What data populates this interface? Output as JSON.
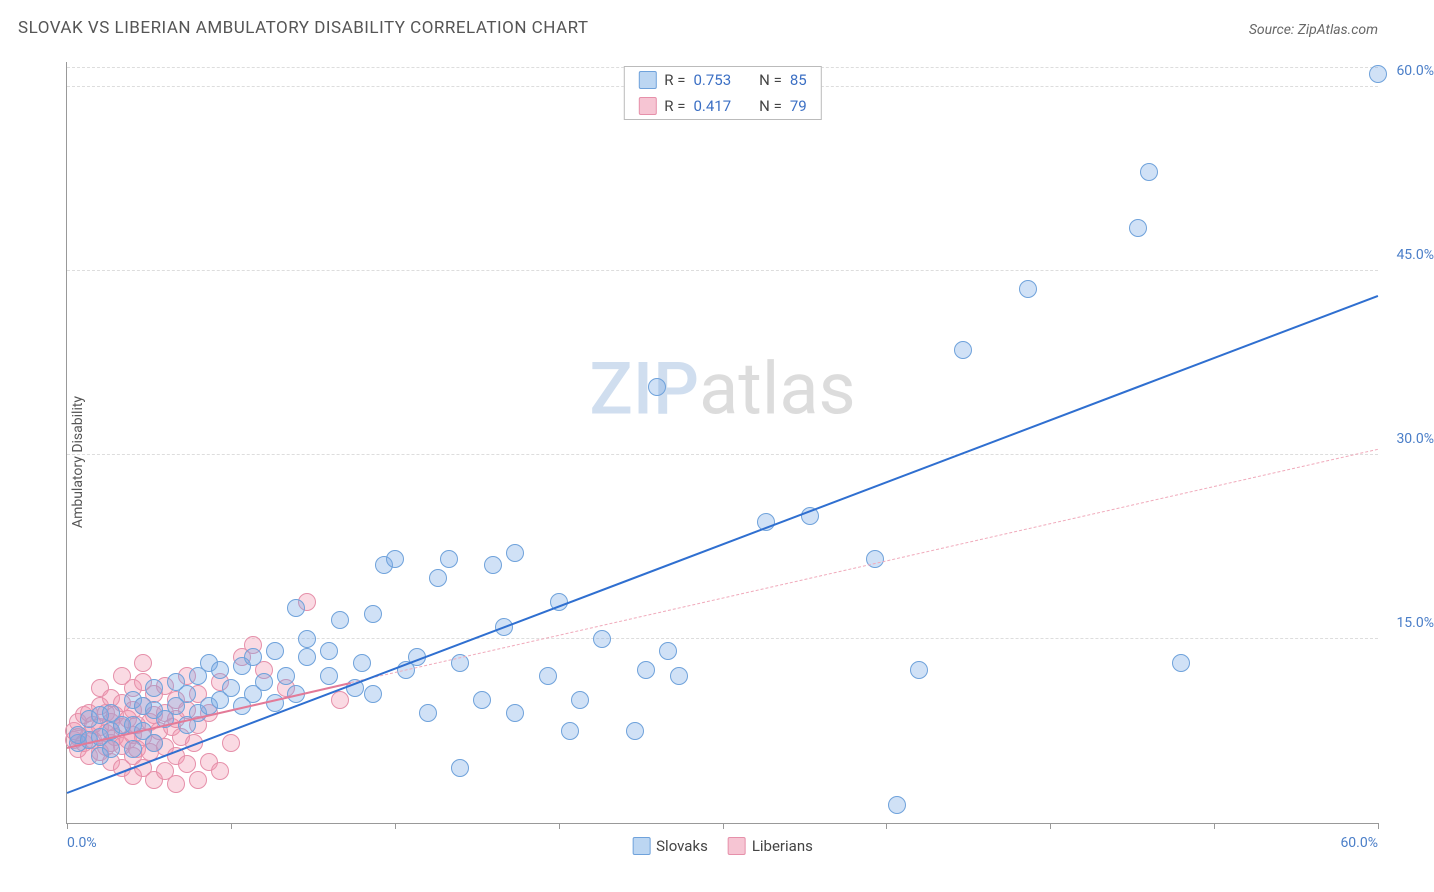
{
  "title": "SLOVAK VS LIBERIAN AMBULATORY DISABILITY CORRELATION CHART",
  "source_label": "Source: ZipAtlas.com",
  "ylabel": "Ambulatory Disability",
  "watermark": {
    "part1": "ZIP",
    "part2": "atlas"
  },
  "chart": {
    "type": "scatter",
    "background_color": "#ffffff",
    "grid_color": "#dddddd",
    "axis_color": "#999999",
    "xlim": [
      0,
      60
    ],
    "ylim": [
      0,
      62
    ],
    "xticks": [
      0,
      7.5,
      15,
      22.5,
      30,
      37.5,
      45,
      52.5,
      60
    ],
    "xtick_labels": {
      "0": "0.0%",
      "60": "60.0%"
    },
    "yticks": [
      15,
      30,
      45,
      60
    ],
    "ytick_labels": {
      "15": "15.0%",
      "30": "30.0%",
      "45": "45.0%",
      "60": "60.0%"
    },
    "point_radius": 9,
    "point_border_width": 1,
    "series": [
      {
        "name": "Slovaks",
        "fill_color": "rgba(120,170,230,0.35)",
        "border_color": "#6fa2db",
        "swatch_fill": "#bcd6f2",
        "swatch_border": "#6fa2db",
        "r_value": "0.753",
        "n_value": "85",
        "trend": {
          "color": "#2f6fd0",
          "width": 2.5,
          "dash": "solid",
          "x1": 0,
          "y1": 2.5,
          "x2": 60,
          "y2": 43
        },
        "points": [
          [
            0.5,
            6.5
          ],
          [
            0.5,
            7.2
          ],
          [
            1,
            6.8
          ],
          [
            1,
            8.5
          ],
          [
            1.5,
            7
          ],
          [
            1.5,
            5.5
          ],
          [
            1.5,
            8.8
          ],
          [
            2,
            6
          ],
          [
            2,
            7.5
          ],
          [
            2,
            9
          ],
          [
            2.5,
            8
          ],
          [
            3,
            6
          ],
          [
            3,
            8
          ],
          [
            3,
            10
          ],
          [
            3.5,
            7.5
          ],
          [
            3.5,
            9.5
          ],
          [
            4,
            6.5
          ],
          [
            4,
            9.2
          ],
          [
            4,
            11
          ],
          [
            4.5,
            8.5
          ],
          [
            5,
            9.5
          ],
          [
            5,
            11.5
          ],
          [
            5.5,
            8
          ],
          [
            5.5,
            10.5
          ],
          [
            6,
            9
          ],
          [
            6,
            12
          ],
          [
            6.5,
            9.5
          ],
          [
            6.5,
            13
          ],
          [
            7,
            10
          ],
          [
            7,
            12.5
          ],
          [
            7.5,
            11
          ],
          [
            8,
            9.5
          ],
          [
            8,
            12.8
          ],
          [
            8.5,
            10.5
          ],
          [
            8.5,
            13.5
          ],
          [
            9,
            11.5
          ],
          [
            9.5,
            9.8
          ],
          [
            9.5,
            14
          ],
          [
            10,
            12
          ],
          [
            10.5,
            17.5
          ],
          [
            10.5,
            10.5
          ],
          [
            11,
            13.5
          ],
          [
            11,
            15
          ],
          [
            12,
            14
          ],
          [
            12,
            12
          ],
          [
            12.5,
            16.5
          ],
          [
            13.2,
            11
          ],
          [
            13.5,
            13
          ],
          [
            14,
            10.5
          ],
          [
            14,
            17
          ],
          [
            14.5,
            21
          ],
          [
            15,
            21.5
          ],
          [
            15.5,
            12.5
          ],
          [
            16,
            13.5
          ],
          [
            16.5,
            9
          ],
          [
            17,
            20
          ],
          [
            17.5,
            21.5
          ],
          [
            18,
            4.5
          ],
          [
            18,
            13
          ],
          [
            19,
            10
          ],
          [
            19.5,
            21
          ],
          [
            20,
            16
          ],
          [
            20.5,
            9
          ],
          [
            20.5,
            22
          ],
          [
            22,
            12
          ],
          [
            22.5,
            18
          ],
          [
            23,
            7.5
          ],
          [
            23.5,
            10
          ],
          [
            24.5,
            15
          ],
          [
            26,
            7.5
          ],
          [
            26.5,
            12.5
          ],
          [
            27,
            35.5
          ],
          [
            27.5,
            14
          ],
          [
            28,
            12
          ],
          [
            32,
            24.5
          ],
          [
            34,
            25
          ],
          [
            37,
            21.5
          ],
          [
            38,
            1.5
          ],
          [
            39,
            12.5
          ],
          [
            41,
            38.5
          ],
          [
            44,
            43.5
          ],
          [
            49,
            48.5
          ],
          [
            49.5,
            53
          ],
          [
            51,
            13
          ],
          [
            60,
            61
          ]
        ]
      },
      {
        "name": "Liberians",
        "fill_color": "rgba(240,150,175,0.35)",
        "border_color": "#e690aa",
        "swatch_fill": "#f6c5d3",
        "swatch_border": "#e690aa",
        "r_value": "0.417",
        "n_value": "79",
        "trend_solid": {
          "color": "#e37a98",
          "width": 2,
          "dash": "solid",
          "x1": 0,
          "y1": 6.2,
          "x2": 13,
          "y2": 11.5
        },
        "trend_dashed": {
          "color": "#f0aabb",
          "width": 1.3,
          "dash": "dashed",
          "x1": 13,
          "y1": 11.5,
          "x2": 60,
          "y2": 30.5
        },
        "points": [
          [
            0.3,
            6.8
          ],
          [
            0.3,
            7.5
          ],
          [
            0.5,
            6
          ],
          [
            0.5,
            7
          ],
          [
            0.5,
            8.2
          ],
          [
            0.8,
            6.5
          ],
          [
            0.8,
            8.8
          ],
          [
            1,
            5.5
          ],
          [
            1,
            7.2
          ],
          [
            1,
            9
          ],
          [
            1.2,
            6.8
          ],
          [
            1.2,
            8
          ],
          [
            1.5,
            5.8
          ],
          [
            1.5,
            7.8
          ],
          [
            1.5,
            9.5
          ],
          [
            1.5,
            11
          ],
          [
            1.8,
            6.2
          ],
          [
            1.8,
            7.3
          ],
          [
            1.8,
            9
          ],
          [
            2,
            5
          ],
          [
            2,
            6.5
          ],
          [
            2,
            8.2
          ],
          [
            2,
            10.2
          ],
          [
            2.2,
            7
          ],
          [
            2.2,
            8.8
          ],
          [
            2.5,
            4.5
          ],
          [
            2.5,
            6.3
          ],
          [
            2.5,
            7.8
          ],
          [
            2.5,
            9.8
          ],
          [
            2.5,
            12
          ],
          [
            2.8,
            6.8
          ],
          [
            2.8,
            8.5
          ],
          [
            3,
            3.8
          ],
          [
            3,
            5.5
          ],
          [
            3,
            7.2
          ],
          [
            3,
            9.2
          ],
          [
            3,
            11
          ],
          [
            3.2,
            6
          ],
          [
            3.2,
            8
          ],
          [
            3.5,
            4.5
          ],
          [
            3.5,
            7
          ],
          [
            3.5,
            9.5
          ],
          [
            3.5,
            11.5
          ],
          [
            3.5,
            13
          ],
          [
            3.8,
            5.8
          ],
          [
            3.8,
            8.2
          ],
          [
            4,
            3.5
          ],
          [
            4,
            6.5
          ],
          [
            4,
            8.8
          ],
          [
            4,
            10.5
          ],
          [
            4.2,
            7.5
          ],
          [
            4.5,
            4.2
          ],
          [
            4.5,
            6.2
          ],
          [
            4.5,
            9
          ],
          [
            4.5,
            11.2
          ],
          [
            4.8,
            7.8
          ],
          [
            5,
            3.2
          ],
          [
            5,
            5.5
          ],
          [
            5,
            8.5
          ],
          [
            5,
            10
          ],
          [
            5.2,
            7
          ],
          [
            5.5,
            4.8
          ],
          [
            5.5,
            9.2
          ],
          [
            5.5,
            12
          ],
          [
            5.8,
            6.5
          ],
          [
            6,
            3.5
          ],
          [
            6,
            8
          ],
          [
            6,
            10.5
          ],
          [
            6.5,
            5
          ],
          [
            6.5,
            9
          ],
          [
            7,
            4.2
          ],
          [
            7,
            11.5
          ],
          [
            7.5,
            6.5
          ],
          [
            8,
            13.5
          ],
          [
            8.5,
            14.5
          ],
          [
            9,
            12.5
          ],
          [
            10,
            11
          ],
          [
            11,
            18
          ],
          [
            12.5,
            10
          ]
        ]
      }
    ]
  },
  "legend_bottom": [
    {
      "label": "Slovaks"
    },
    {
      "label": "Liberians"
    }
  ]
}
